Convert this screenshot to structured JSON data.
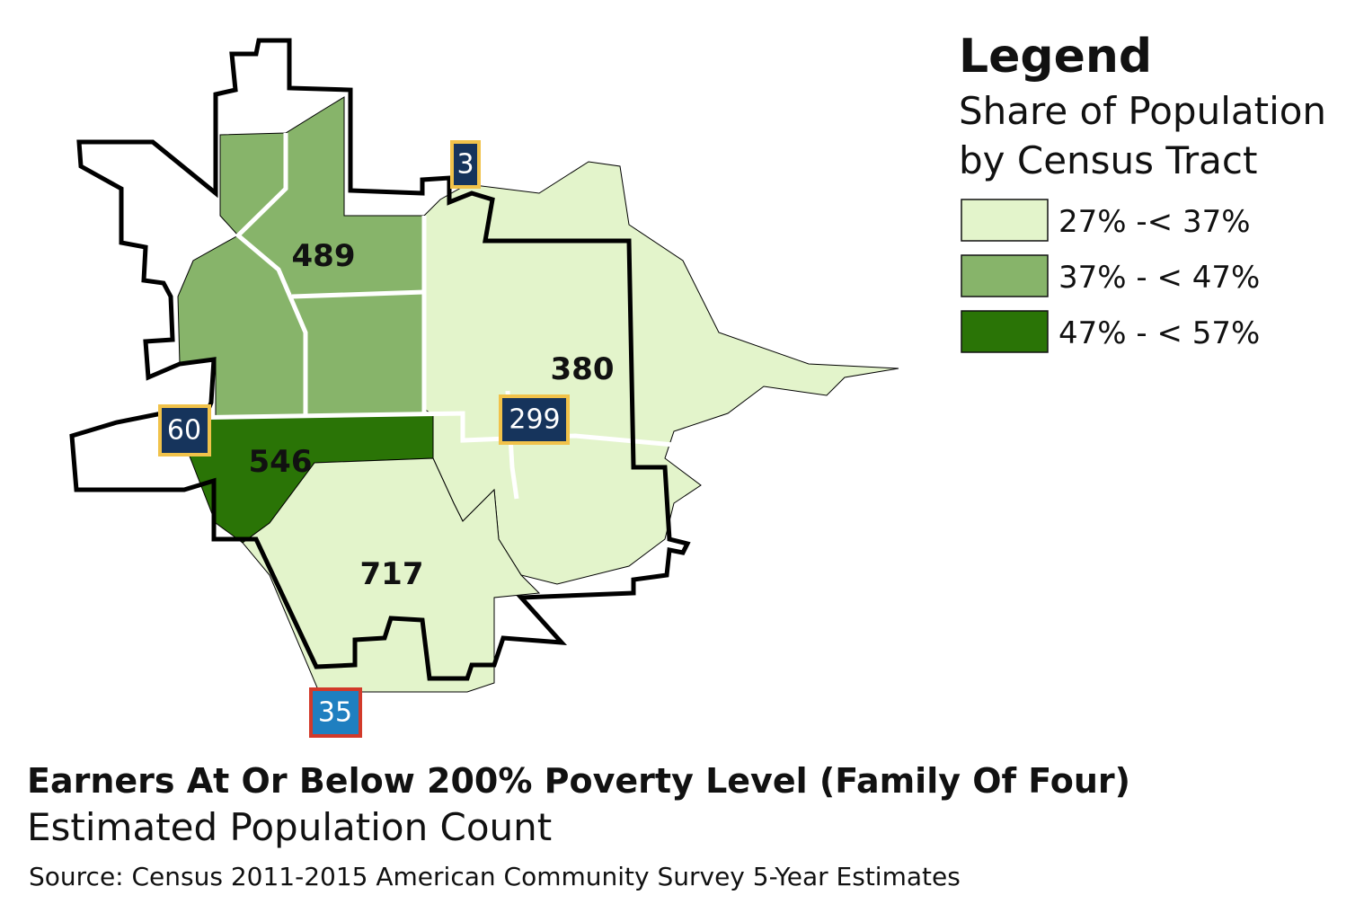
{
  "legend": {
    "title": "Legend",
    "subtitle": [
      "Share of Population",
      "by Census Tract"
    ],
    "items": [
      {
        "label": "27% -< 37%",
        "color": "#e3f4cb"
      },
      {
        "label": "37% - < 47%",
        "color": "#87b46a"
      },
      {
        "label": "47% - < 57%",
        "color": "#2a7406"
      }
    ]
  },
  "tracts": [
    {
      "label": "489"
    },
    {
      "label": "380"
    },
    {
      "label": "546"
    },
    {
      "label": "717"
    }
  ],
  "shields": [
    {
      "label": "3"
    },
    {
      "label": "60"
    },
    {
      "label": "299"
    },
    {
      "label": "35"
    }
  ],
  "footer": {
    "title": "Earners At Or Below 200% Poverty Level (Family Of Four)",
    "subtitle": "Estimated Population Count",
    "source": "Source: Census 2011-2015 American Community Survey 5-Year Estimates"
  }
}
